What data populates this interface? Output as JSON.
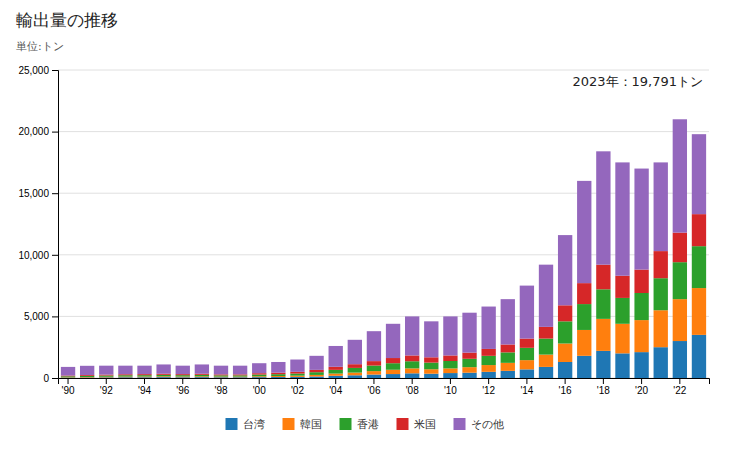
{
  "chart_data": {
    "type": "bar",
    "title": "輸出量の推移",
    "subtitle": "単位:トン",
    "annotation": "2023年：19,791トン",
    "stacked": true,
    "grid": true,
    "legend": "bottom",
    "categories": [
      "'90",
      null,
      "'92",
      null,
      "'94",
      null,
      "'96",
      null,
      "'98",
      null,
      "'00",
      null,
      "'02",
      null,
      "'04",
      null,
      "'06",
      null,
      "'08",
      null,
      "'10",
      null,
      "'12",
      null,
      "'14",
      null,
      "'16",
      null,
      "'18",
      null,
      "'20",
      null,
      "'22",
      null
    ],
    "series": [
      {
        "name": "台湾",
        "values": [
          30,
          40,
          50,
          60,
          60,
          70,
          60,
          70,
          60,
          60,
          70,
          80,
          90,
          120,
          180,
          220,
          280,
          320,
          380,
          350,
          400,
          430,
          500,
          580,
          700,
          900,
          1300,
          1800,
          2200,
          2000,
          2100,
          2500,
          3000,
          3500
        ]
      },
      {
        "name": "韓国",
        "values": [
          30,
          40,
          50,
          55,
          60,
          65,
          60,
          65,
          55,
          55,
          70,
          80,
          100,
          130,
          180,
          220,
          280,
          350,
          400,
          360,
          380,
          450,
          550,
          650,
          750,
          1000,
          1500,
          2100,
          2600,
          2400,
          2600,
          3000,
          3400,
          3800
        ]
      },
      {
        "name": "香港",
        "values": [
          80,
          90,
          100,
          110,
          110,
          120,
          110,
          120,
          100,
          100,
          140,
          150,
          170,
          220,
          300,
          380,
          450,
          530,
          580,
          540,
          600,
          680,
          750,
          850,
          1000,
          1300,
          1800,
          2100,
          2400,
          2100,
          2200,
          2600,
          3000,
          3400
        ]
      },
      {
        "name": "米国",
        "values": [
          60,
          70,
          75,
          80,
          85,
          90,
          85,
          90,
          80,
          80,
          110,
          120,
          140,
          190,
          250,
          300,
          360,
          420,
          470,
          430,
          450,
          500,
          560,
          640,
          750,
          950,
          1300,
          1700,
          2000,
          1800,
          1900,
          2200,
          2400,
          2600
        ]
      },
      {
        "name": "その他",
        "values": [
          700,
          750,
          725,
          695,
          685,
          755,
          685,
          755,
          705,
          705,
          810,
          870,
          1000,
          1140,
          1690,
          1980,
          2430,
          2780,
          3170,
          2920,
          3170,
          3240,
          3440,
          3680,
          4300,
          5050,
          5700,
          8300,
          9200,
          9200,
          8200,
          7200,
          9200,
          6491
        ]
      }
    ],
    "ylim": [
      0,
      25000
    ],
    "yticks": [
      0,
      {
        "value": 5000,
        "label": "5,000"
      },
      {
        "value": 10000,
        "label": "10,000"
      },
      {
        "value": 15000,
        "label": "15,000"
      },
      {
        "value": 20000,
        "label": "20,000"
      },
      {
        "value": 25000,
        "label": "25,000"
      }
    ]
  }
}
